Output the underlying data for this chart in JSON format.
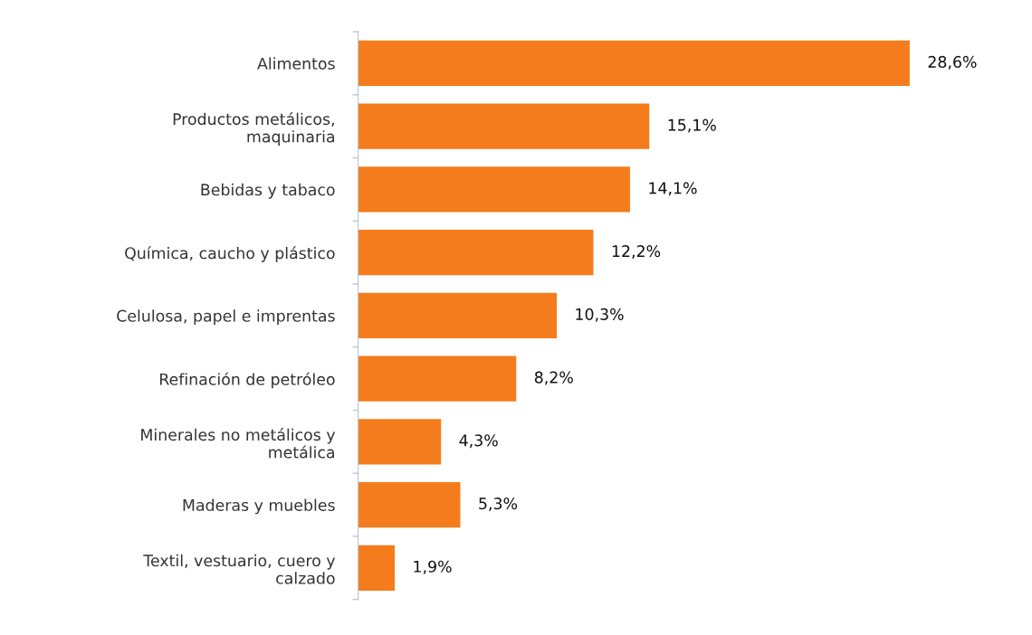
{
  "chart_data": {
    "type": "bar",
    "orientation": "horizontal",
    "categories": [
      "Alimentos",
      "Productos metálicos,\nmaquinaria",
      "Bebidas y tabaco",
      "Química, caucho y plástico",
      "Celulosa, papel e imprentas",
      "Refinación de petróleo",
      "Minerales no metálicos y\nmetálica",
      "Maderas y muebles",
      "Textil, vestuario, cuero y\ncalzado"
    ],
    "values": [
      28.6,
      15.1,
      14.1,
      12.2,
      10.3,
      8.2,
      4.3,
      5.3,
      1.9
    ],
    "value_labels": [
      "28,6%",
      "15,1%",
      "14,1%",
      "12,2%",
      "10,3%",
      "8,2%",
      "4,3%",
      "5,3%",
      "1,9%"
    ],
    "color": "#f47c1c",
    "grid": false,
    "legend": false
  }
}
